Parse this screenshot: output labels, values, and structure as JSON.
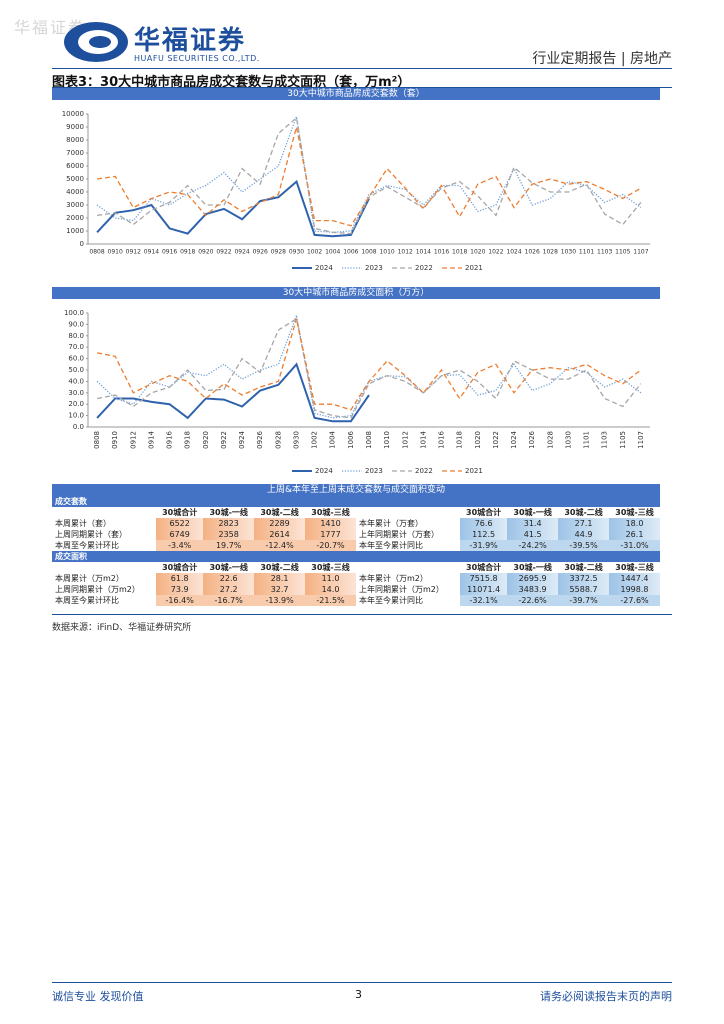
{
  "header": {
    "watermark": "华福证券",
    "logo_cn": "华福证券",
    "logo_en": "HUAFU SECURITIES CO.,LTD.",
    "report_type": "行业定期报告 | 房地产"
  },
  "figure_title": "图表3：30大中城市商品房成交套数与成交面积（套，万m²）",
  "chart_data": [
    {
      "type": "line",
      "title": "30大中城市商品房成交套数（套）",
      "categories": [
        "0808",
        "0910",
        "0912",
        "0914",
        "0916",
        "0918",
        "0920",
        "0922",
        "0924",
        "0926",
        "0928",
        "0930",
        "1002",
        "1004",
        "1006",
        "1008",
        "1010",
        "1012",
        "1014",
        "1016",
        "1018",
        "1020",
        "1022",
        "1024",
        "1026",
        "1028",
        "1030",
        "1101",
        "1103",
        "1105",
        "1107"
      ],
      "ylim": [
        0,
        10000
      ],
      "yticks": [
        0,
        1000,
        2000,
        3000,
        4000,
        5000,
        6000,
        7000,
        8000,
        9000,
        10000
      ],
      "legend": "bottom",
      "series": [
        {
          "name": "2024",
          "color": "#2f62ad",
          "line_style": "solid",
          "values": [
            900,
            2400,
            2600,
            3000,
            1200,
            800,
            2300,
            2700,
            1900,
            3300,
            3600,
            4800,
            700,
            600,
            700,
            3500,
            null,
            null,
            null,
            null,
            null,
            null,
            null,
            null,
            null,
            null,
            null,
            null,
            null,
            null,
            null
          ]
        },
        {
          "name": "2023",
          "color": "#6f9fd8",
          "line_style": "dotted",
          "values": [
            3000,
            2000,
            1800,
            3500,
            3000,
            3900,
            4500,
            5500,
            4000,
            5000,
            6000,
            9800,
            1000,
            900,
            1000,
            3800,
            4500,
            4200,
            3000,
            4500,
            4500,
            2500,
            3000,
            5800,
            3000,
            3500,
            4800,
            4500,
            3200,
            3800,
            2800
          ]
        },
        {
          "name": "2022",
          "color": "#a6a6a6",
          "line_style": "dashed",
          "values": [
            2200,
            2400,
            1500,
            2600,
            3200,
            4500,
            3000,
            3000,
            5800,
            4600,
            8500,
            9700,
            1200,
            900,
            800,
            3600,
            4400,
            3600,
            2800,
            4300,
            4800,
            3700,
            2200,
            5900,
            4700,
            4000,
            4000,
            4600,
            2300,
            1500,
            3200
          ]
        },
        {
          "name": "2021",
          "color": "#ed7d31",
          "line_style": "dashed",
          "values": [
            5000,
            5200,
            2800,
            3500,
            4000,
            3800,
            2200,
            3400,
            2500,
            3200,
            3800,
            9000,
            1800,
            1800,
            1400,
            3600,
            5800,
            4300,
            2700,
            4500,
            2100,
            4600,
            5200,
            2800,
            4600,
            5000,
            4600,
            4800,
            4200,
            3500,
            4300
          ]
        }
      ]
    },
    {
      "type": "line",
      "title": "30大中城市商品房成交面积（万方）",
      "categories": [
        "0808",
        "0910",
        "0912",
        "0914",
        "0916",
        "0918",
        "0920",
        "0922",
        "0924",
        "0926",
        "0928",
        "0930",
        "1002",
        "1004",
        "1006",
        "1008",
        "1010",
        "1012",
        "1014",
        "1016",
        "1018",
        "1020",
        "1022",
        "1024",
        "1026",
        "1028",
        "1030",
        "1101",
        "1103",
        "1105",
        "1107"
      ],
      "ylim": [
        0,
        100
      ],
      "yticks": [
        {
          "value": 0,
          "label": "0.0"
        },
        {
          "value": 10,
          "label": "10.0"
        },
        {
          "value": 20,
          "label": "20.0"
        },
        {
          "value": 30,
          "label": "30.0"
        },
        {
          "value": 40,
          "label": "40.0"
        },
        {
          "value": 50,
          "label": "50.0"
        },
        {
          "value": 60,
          "label": "60.0"
        },
        {
          "value": 70,
          "label": "70.0"
        },
        {
          "value": 80,
          "label": "80.0"
        },
        {
          "value": 90,
          "label": "90.0"
        },
        {
          "value": 100,
          "label": "100.0"
        }
      ],
      "legend": "bottom",
      "rotate_x_labels": true,
      "series": [
        {
          "name": "2024",
          "color": "#2f62ad",
          "line_style": "solid",
          "values": [
            8,
            25,
            25,
            22,
            20,
            8,
            25,
            24,
            18,
            32,
            37,
            55,
            8,
            5,
            5,
            28,
            null,
            null,
            null,
            null,
            null,
            null,
            null,
            null,
            null,
            null,
            null,
            null,
            null,
            null,
            null
          ]
        },
        {
          "name": "2023",
          "color": "#6f9fd8",
          "line_style": "dotted",
          "values": [
            40,
            25,
            20,
            40,
            35,
            48,
            45,
            55,
            42,
            50,
            55,
            98,
            12,
            8,
            10,
            40,
            45,
            44,
            30,
            45,
            46,
            28,
            32,
            55,
            32,
            38,
            52,
            48,
            35,
            42,
            30
          ]
        },
        {
          "name": "2022",
          "color": "#a6a6a6",
          "line_style": "dashed",
          "values": [
            25,
            28,
            18,
            30,
            35,
            50,
            32,
            33,
            60,
            48,
            85,
            95,
            15,
            10,
            8,
            38,
            45,
            40,
            30,
            45,
            50,
            40,
            25,
            58,
            50,
            42,
            42,
            50,
            25,
            18,
            38
          ]
        },
        {
          "name": "2021",
          "color": "#ed7d31",
          "line_style": "dashed",
          "values": [
            65,
            62,
            30,
            38,
            45,
            40,
            25,
            38,
            28,
            35,
            40,
            95,
            20,
            20,
            15,
            40,
            58,
            45,
            30,
            50,
            25,
            48,
            55,
            30,
            50,
            52,
            50,
            55,
            45,
            38,
            50
          ]
        }
      ]
    }
  ],
  "table": {
    "title": "上周&本年至上周末成交套数与成交面积变动",
    "sections": [
      {
        "name": "成交套数",
        "header": [
          "30城合计",
          "30城-一线",
          "30城-二线",
          "30城-三线",
          "30城合计",
          "30城-一线",
          "30城-二线",
          "30城-三线"
        ],
        "rows": [
          [
            "本周累计（套）",
            "6522",
            "2823",
            "2289",
            "1410",
            "本年累计（万套）",
            "76.6",
            "31.4",
            "27.1",
            "18.0"
          ],
          [
            "上周同期累计（套）",
            "6749",
            "2358",
            "2614",
            "1777",
            "上年同期累计（万套）",
            "112.5",
            "41.5",
            "44.9",
            "26.1"
          ],
          [
            "本周至今累计环比",
            "-3.4%",
            "19.7%",
            "-12.4%",
            "-20.7%",
            "本年至今累计同比",
            "-31.9%",
            "-24.2%",
            "-39.5%",
            "-31.0%"
          ]
        ]
      },
      {
        "name": "成交面积",
        "header": [
          "30城合计",
          "30城-一线",
          "30城-二线",
          "30城-三线",
          "30城合计",
          "30城-一线",
          "30城-二线",
          "30城-三线"
        ],
        "rows": [
          [
            "本周累计（万m2）",
            "61.8",
            "22.6",
            "28.1",
            "11.0",
            "本年累计（万m2）",
            "7515.8",
            "2695.9",
            "3372.5",
            "1447.4"
          ],
          [
            "上周同期累计（万m2）",
            "73.9",
            "27.2",
            "32.7",
            "14.0",
            "上年同期累计（万m2）",
            "11071.4",
            "3483.9",
            "5588.7",
            "1998.8"
          ],
          [
            "本周至今累计环比",
            "-16.4%",
            "-16.7%",
            "-13.9%",
            "-21.5%",
            "本年至今累计同比",
            "-32.1%",
            "-22.6%",
            "-39.7%",
            "-27.6%"
          ]
        ]
      }
    ]
  },
  "source": "数据来源：iFinD、华福证券研究所",
  "footer": {
    "left": "诚信专业  发现价值",
    "page": "3",
    "right": "请务必阅读报告末页的声明"
  }
}
